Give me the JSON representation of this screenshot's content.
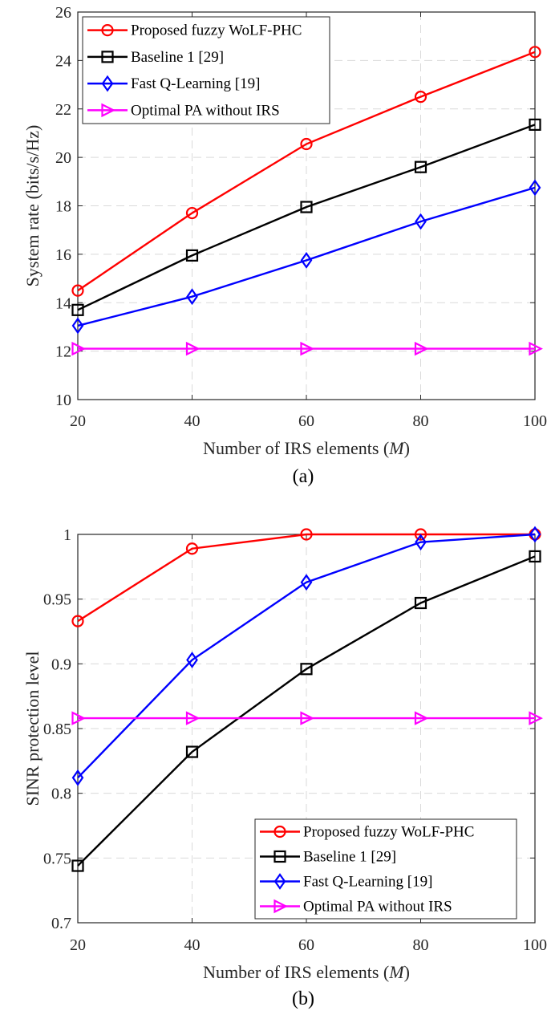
{
  "chart_data": [
    {
      "type": "line",
      "caption": "(a)",
      "xlabel_prefix": "Number of IRS elements (",
      "xlabel_var": "M",
      "xlabel_suffix": ")",
      "ylabel": "System rate (bits/s/Hz)",
      "x": [
        20,
        40,
        60,
        80,
        100
      ],
      "xlim": [
        20,
        100
      ],
      "ylim": [
        10,
        26
      ],
      "xticks": [
        20,
        40,
        60,
        80,
        100
      ],
      "yticks": [
        10,
        12,
        14,
        16,
        18,
        20,
        22,
        24,
        26
      ],
      "xtick_labels": [
        "20",
        "40",
        "60",
        "80",
        "100"
      ],
      "ytick_labels": [
        "10",
        "12",
        "14",
        "16",
        "18",
        "20",
        "22",
        "24",
        "26"
      ],
      "grid": true,
      "legend_position": "top-left",
      "series": [
        {
          "name": "Proposed fuzzy WoLF-PHC",
          "color": "#ff0000",
          "marker": "circle",
          "values": [
            14.5,
            17.7,
            20.55,
            22.5,
            24.35
          ]
        },
        {
          "name": "Baseline 1 [29]",
          "color": "#000000",
          "marker": "square",
          "values": [
            13.7,
            15.95,
            17.95,
            19.6,
            21.35
          ]
        },
        {
          "name": "Fast Q-Learning [19]",
          "color": "#0000ff",
          "marker": "diamond",
          "values": [
            13.05,
            14.25,
            15.75,
            17.35,
            18.75
          ]
        },
        {
          "name": "Optimal PA without IRS",
          "color": "#ff00ff",
          "marker": "triangle-right",
          "values": [
            12.1,
            12.1,
            12.1,
            12.1,
            12.1
          ]
        }
      ]
    },
    {
      "type": "line",
      "caption": "(b)",
      "xlabel_prefix": "Number of IRS elements (",
      "xlabel_var": "M",
      "xlabel_suffix": ")",
      "ylabel": "SINR protection level",
      "x": [
        20,
        40,
        60,
        80,
        100
      ],
      "xlim": [
        20,
        100
      ],
      "ylim": [
        0.7,
        1.0
      ],
      "xticks": [
        20,
        40,
        60,
        80,
        100
      ],
      "yticks": [
        0.7,
        0.75,
        0.8,
        0.85,
        0.9,
        0.95,
        1.0
      ],
      "xtick_labels": [
        "20",
        "40",
        "60",
        "80",
        "100"
      ],
      "ytick_labels": [
        "0.7",
        "0.75",
        "0.8",
        "0.85",
        "0.9",
        "0.95",
        "1"
      ],
      "grid": true,
      "legend_position": "bottom-right",
      "series": [
        {
          "name": "Proposed fuzzy WoLF-PHC",
          "color": "#ff0000",
          "marker": "circle",
          "values": [
            0.933,
            0.989,
            1.0,
            1.0,
            1.0
          ]
        },
        {
          "name": "Baseline 1 [29]",
          "color": "#000000",
          "marker": "square",
          "values": [
            0.744,
            0.832,
            0.896,
            0.947,
            0.983
          ]
        },
        {
          "name": "Fast Q-Learning [19]",
          "color": "#0000ff",
          "marker": "diamond",
          "values": [
            0.812,
            0.903,
            0.963,
            0.994,
            1.0
          ]
        },
        {
          "name": "Optimal PA without IRS",
          "color": "#ff00ff",
          "marker": "triangle-right",
          "values": [
            0.858,
            0.858,
            0.858,
            0.858,
            0.858
          ]
        }
      ]
    }
  ]
}
